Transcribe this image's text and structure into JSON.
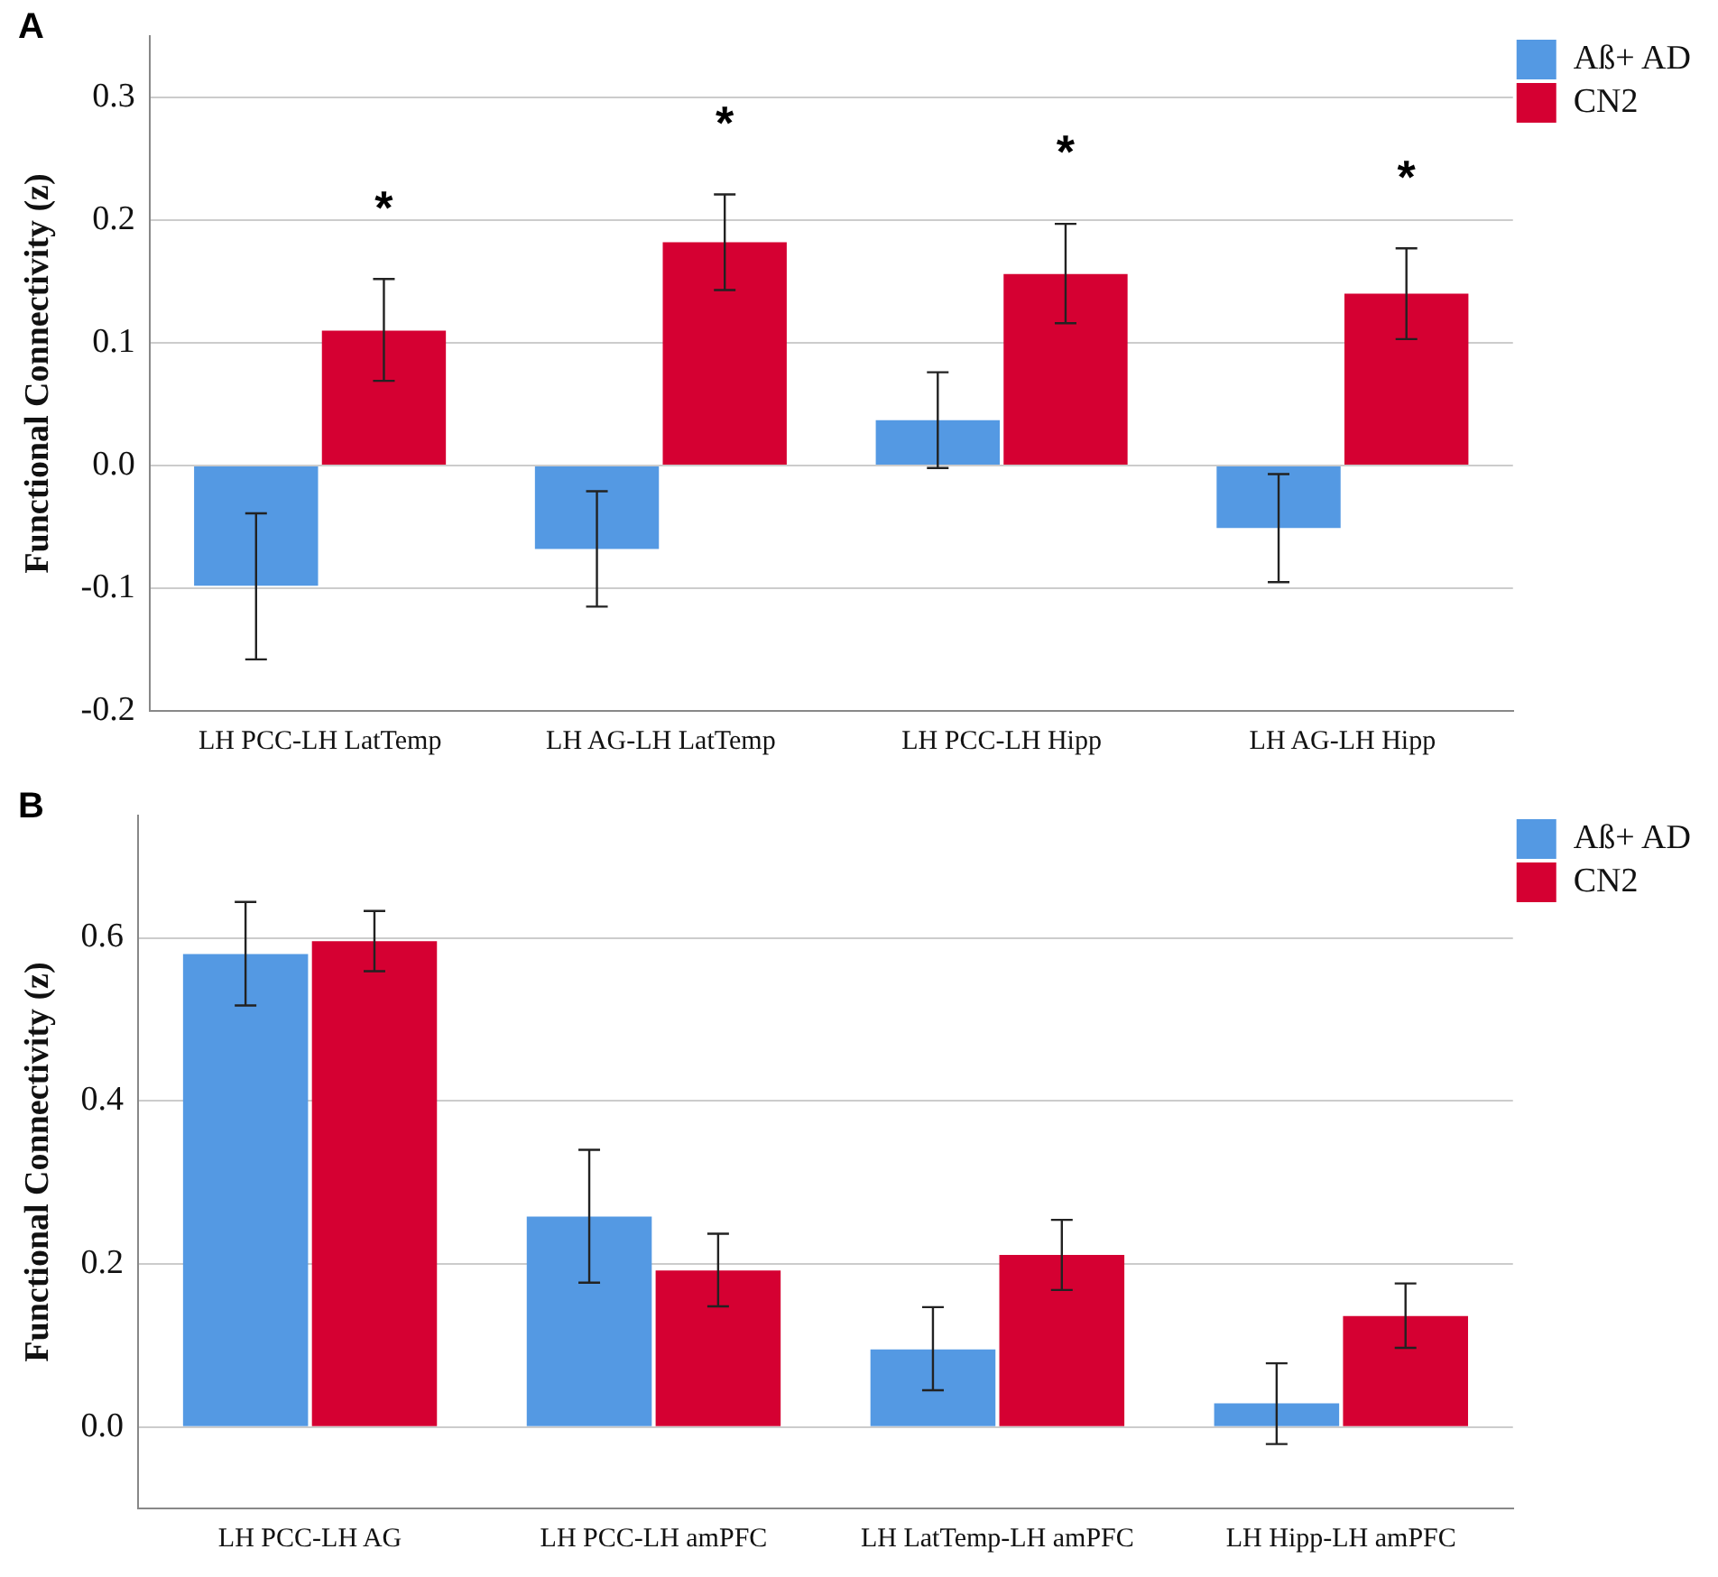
{
  "chart_data": [
    {
      "type": "bar",
      "categories": [
        "LH PCC-LH LatTemp",
        "LH AG-LH LatTemp",
        "LH PCC-LH Hipp",
        "LH AG-LH Hipp"
      ],
      "ylabel": "Functional Connectivity (z)",
      "series": [
        {
          "name": "Aß+ AD",
          "color": "#5499e3",
          "values": [
            -0.098,
            -0.068,
            0.037,
            -0.051
          ],
          "errors": [
            [
              -0.158,
              -0.039
            ],
            [
              -0.115,
              -0.021
            ],
            [
              -0.002,
              0.076
            ],
            [
              -0.095,
              -0.007
            ]
          ]
        },
        {
          "name": "CN2",
          "color": "#d50032",
          "values": [
            0.11,
            0.182,
            0.156,
            0.14
          ],
          "errors": [
            [
              0.069,
              0.152
            ],
            [
              0.143,
              0.221
            ],
            [
              0.116,
              0.197
            ],
            [
              0.103,
              0.177
            ]
          ]
        }
      ],
      "ylim": [
        -0.2,
        0.35
      ],
      "yticks": [
        {
          "value": -0.2,
          "label": "-0.2"
        },
        {
          "value": -0.1,
          "label": "-0.1"
        },
        {
          "value": 0,
          "label": "0.0"
        },
        {
          "value": 0.1,
          "label": "0.1"
        },
        {
          "value": 0.2,
          "label": "0.2"
        },
        {
          "value": 0.3,
          "label": "0.3"
        }
      ],
      "grid": "y",
      "legend": "top right",
      "annotations": [
        "A",
        "*",
        "*",
        "*",
        "*"
      ]
    },
    {
      "type": "bar",
      "categories": [
        "LH PCC-LH AG",
        "LH PCC-LH amPFC",
        "LH LatTemp-LH amPFC",
        "LH Hipp-LH amPFC"
      ],
      "ylabel": "Functional Connectivity (z)",
      "series": [
        {
          "name": "Aß+ AD",
          "color": "#5499e3",
          "values": [
            0.58,
            0.258,
            0.095,
            0.029
          ],
          "errors": [
            [
              0.517,
              0.644
            ],
            [
              0.177,
              0.34
            ],
            [
              0.045,
              0.147
            ],
            [
              -0.021,
              0.078
            ]
          ]
        },
        {
          "name": "CN2",
          "color": "#d50032",
          "values": [
            0.596,
            0.192,
            0.211,
            0.136
          ],
          "errors": [
            [
              0.559,
              0.633
            ],
            [
              0.148,
              0.237
            ],
            [
              0.168,
              0.254
            ],
            [
              0.097,
              0.176
            ]
          ]
        }
      ],
      "ylim": [
        -0.1,
        0.75
      ],
      "yticks": [
        {
          "value": 0,
          "label": "0.0"
        },
        {
          "value": 0.2,
          "label": "0.2"
        },
        {
          "value": 0.4,
          "label": "0.4"
        },
        {
          "value": 0.6,
          "label": "0.6"
        }
      ],
      "grid": "y",
      "legend": "top right",
      "annotations": [
        "B"
      ]
    }
  ]
}
